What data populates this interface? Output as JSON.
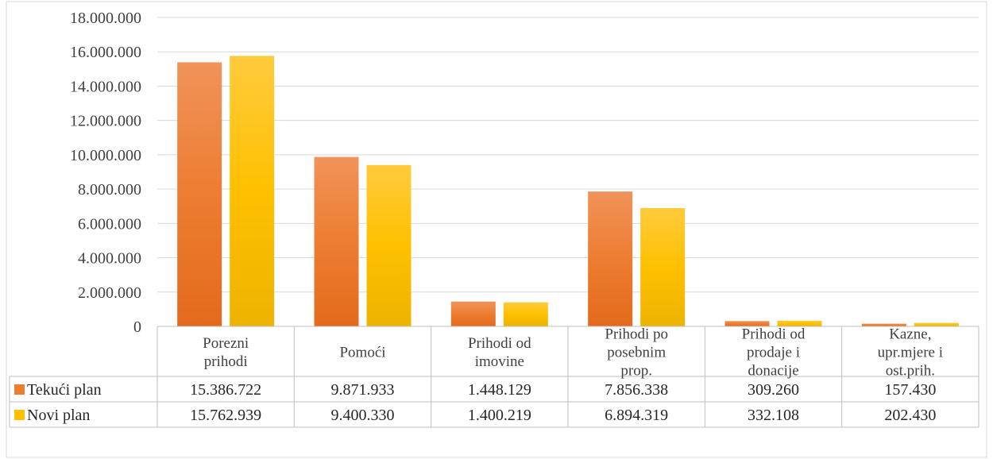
{
  "chart_data": {
    "type": "bar",
    "ylim": [
      0,
      18000000
    ],
    "y_ticks": [
      0,
      2000000,
      4000000,
      6000000,
      8000000,
      10000000,
      12000000,
      14000000,
      16000000,
      18000000
    ],
    "y_tick_labels": [
      "0",
      "2.000.000",
      "4.000.000",
      "6.000.000",
      "8.000.000",
      "10.000.000",
      "12.000.000",
      "14.000.000",
      "16.000.000",
      "18.000.000"
    ],
    "grid": true,
    "categories": [
      [
        "Porezni",
        "prihodi"
      ],
      [
        "Pomoći"
      ],
      [
        "Prihodi od",
        "imovine"
      ],
      [
        "Prihodi po",
        "posebnim",
        "prop."
      ],
      [
        "Prihodi od",
        "prodaje i",
        "donacije"
      ],
      [
        "Kazne,",
        "upr.mjere i",
        "ost.prih."
      ]
    ],
    "series": [
      {
        "name": "Tekući plan",
        "color": "#ED7D31",
        "values": [
          15386722,
          9871933,
          1448129,
          7856338,
          309260,
          157430
        ],
        "value_labels": [
          "15.386.722",
          "9.871.933",
          "1.448.129",
          "7.856.338",
          "309.260",
          "157.430"
        ]
      },
      {
        "name": "Novi plan",
        "color": "#FFC000",
        "values": [
          15762939,
          9400330,
          1400219,
          6894319,
          332108,
          202430
        ],
        "value_labels": [
          "15.762.939",
          "9.400.330",
          "1.400.219",
          "6.894.319",
          "332.108",
          "202.430"
        ]
      }
    ],
    "legend": "data-table"
  }
}
